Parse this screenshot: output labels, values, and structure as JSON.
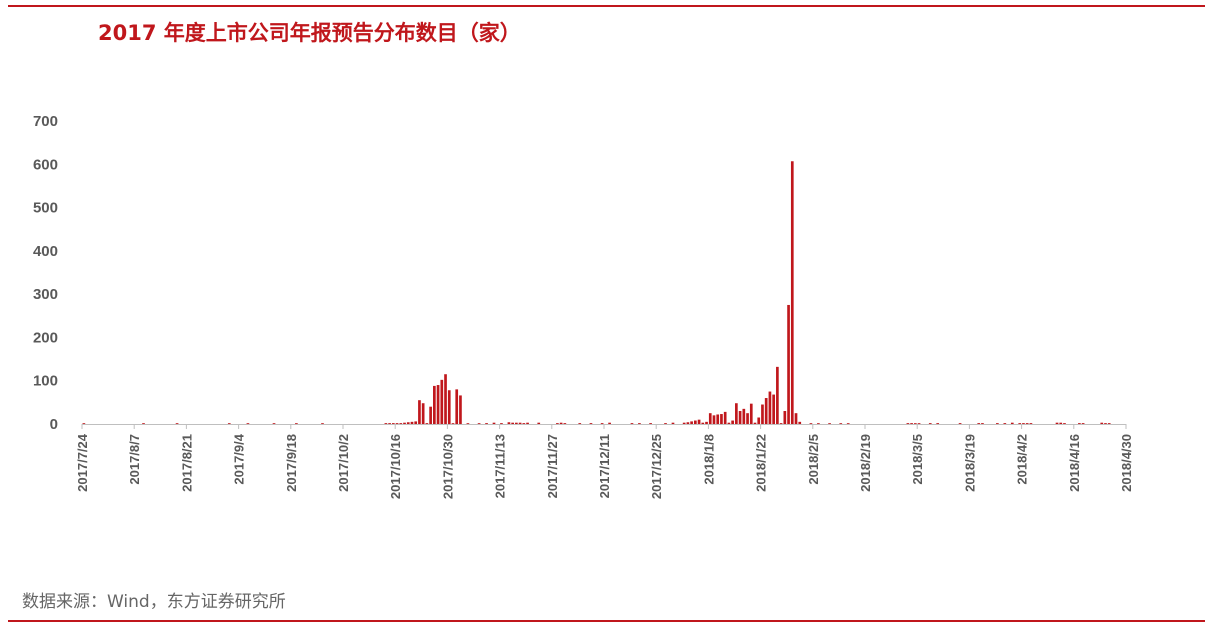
{
  "header": {
    "title": "2017 年度上市公司年报预告分布数目（家）"
  },
  "footer": {
    "source": "数据来源：Wind，东方证券研究所"
  },
  "colors": {
    "bar": "#c0171c",
    "rule": "#c0171c",
    "axis": "#bfbfbf",
    "text": "#595959"
  },
  "chart_data": {
    "type": "bar",
    "title": "2017 年度上市公司年报预告分布数目（家）",
    "xlabel": "",
    "ylabel": "",
    "ylim": [
      0,
      700
    ],
    "yticks": [
      0,
      100,
      200,
      300,
      400,
      500,
      600,
      700
    ],
    "x_start": "2017/7/24",
    "x_end": "2018/4/30",
    "xtick_labels": [
      "2017/7/24",
      "2017/8/7",
      "2017/8/21",
      "2017/9/4",
      "2017/9/18",
      "2017/10/2",
      "2017/10/16",
      "2017/10/30",
      "2017/11/13",
      "2017/11/27",
      "2017/12/11",
      "2017/12/25",
      "2018/1/8",
      "2018/1/22",
      "2018/2/5",
      "2018/2/19",
      "2018/3/5",
      "2018/3/19",
      "2018/4/2",
      "2018/4/16",
      "2018/4/30"
    ],
    "grid": false,
    "legend": "none",
    "series": [
      {
        "values": [
          [
            "2017/7/24",
            1
          ],
          [
            "2017/8/9",
            1
          ],
          [
            "2017/8/18",
            1
          ],
          [
            "2017/9/1",
            1
          ],
          [
            "2017/9/6",
            1
          ],
          [
            "2017/9/13",
            1
          ],
          [
            "2017/9/19",
            1
          ],
          [
            "2017/9/26",
            1
          ],
          [
            "2017/10/13",
            2
          ],
          [
            "2017/10/14",
            2
          ],
          [
            "2017/10/15",
            2
          ],
          [
            "2017/10/16",
            2
          ],
          [
            "2017/10/17",
            2
          ],
          [
            "2017/10/18",
            3
          ],
          [
            "2017/10/19",
            4
          ],
          [
            "2017/10/20",
            5
          ],
          [
            "2017/10/21",
            6
          ],
          [
            "2017/10/22",
            55
          ],
          [
            "2017/10/23",
            48
          ],
          [
            "2017/10/24",
            2
          ],
          [
            "2017/10/25",
            40
          ],
          [
            "2017/10/26",
            88
          ],
          [
            "2017/10/27",
            90
          ],
          [
            "2017/10/28",
            102
          ],
          [
            "2017/10/29",
            115
          ],
          [
            "2017/10/30",
            78
          ],
          [
            "2017/10/31",
            1
          ],
          [
            "2017/11/1",
            80
          ],
          [
            "2017/11/2",
            66
          ],
          [
            "2017/11/4",
            1
          ],
          [
            "2017/11/7",
            1
          ],
          [
            "2017/11/9",
            2
          ],
          [
            "2017/11/11",
            3
          ],
          [
            "2017/11/13",
            2
          ],
          [
            "2017/11/15",
            4
          ],
          [
            "2017/11/16",
            3
          ],
          [
            "2017/11/17",
            3
          ],
          [
            "2017/11/18",
            3
          ],
          [
            "2017/11/19",
            2
          ],
          [
            "2017/11/20",
            3
          ],
          [
            "2017/11/23",
            3
          ],
          [
            "2017/11/28",
            2
          ],
          [
            "2017/11/29",
            3
          ],
          [
            "2017/11/30",
            2
          ],
          [
            "2017/12/4",
            2
          ],
          [
            "2017/12/7",
            2
          ],
          [
            "2017/12/10",
            2
          ],
          [
            "2017/12/12",
            3
          ],
          [
            "2017/12/18",
            2
          ],
          [
            "2017/12/20",
            2
          ],
          [
            "2017/12/23",
            2
          ],
          [
            "2017/12/27",
            2
          ],
          [
            "2017/12/29",
            3
          ],
          [
            "2018/1/1",
            3
          ],
          [
            "2018/1/2",
            4
          ],
          [
            "2018/1/3",
            6
          ],
          [
            "2018/1/4",
            8
          ],
          [
            "2018/1/5",
            10
          ],
          [
            "2018/1/6",
            3
          ],
          [
            "2018/1/7",
            5
          ],
          [
            "2018/1/8",
            25
          ],
          [
            "2018/1/9",
            20
          ],
          [
            "2018/1/10",
            22
          ],
          [
            "2018/1/11",
            23
          ],
          [
            "2018/1/12",
            28
          ],
          [
            "2018/1/13",
            3
          ],
          [
            "2018/1/14",
            8
          ],
          [
            "2018/1/15",
            48
          ],
          [
            "2018/1/16",
            30
          ],
          [
            "2018/1/17",
            35
          ],
          [
            "2018/1/18",
            25
          ],
          [
            "2018/1/19",
            47
          ],
          [
            "2018/1/20",
            3
          ],
          [
            "2018/1/21",
            15
          ],
          [
            "2018/1/22",
            45
          ],
          [
            "2018/1/23",
            60
          ],
          [
            "2018/1/24",
            75
          ],
          [
            "2018/1/25",
            68
          ],
          [
            "2018/1/26",
            132
          ],
          [
            "2018/1/27",
            2
          ],
          [
            "2018/1/28",
            30
          ],
          [
            "2018/1/29",
            275
          ],
          [
            "2018/1/30",
            607
          ],
          [
            "2018/1/31",
            25
          ],
          [
            "2018/2/1",
            5
          ],
          [
            "2018/2/4",
            1
          ],
          [
            "2018/2/6",
            1
          ],
          [
            "2018/2/9",
            1
          ],
          [
            "2018/2/12",
            1
          ],
          [
            "2018/2/14",
            1
          ],
          [
            "2018/3/2",
            2
          ],
          [
            "2018/3/3",
            2
          ],
          [
            "2018/3/4",
            1
          ],
          [
            "2018/3/5",
            1
          ],
          [
            "2018/3/8",
            2
          ],
          [
            "2018/3/10",
            2
          ],
          [
            "2018/3/16",
            2
          ],
          [
            "2018/3/21",
            2
          ],
          [
            "2018/3/22",
            2
          ],
          [
            "2018/3/26",
            2
          ],
          [
            "2018/3/28",
            2
          ],
          [
            "2018/3/30",
            3
          ],
          [
            "2018/4/1",
            2
          ],
          [
            "2018/4/2",
            2
          ],
          [
            "2018/4/3",
            2
          ],
          [
            "2018/4/4",
            2
          ],
          [
            "2018/4/11",
            3
          ],
          [
            "2018/4/12",
            3
          ],
          [
            "2018/4/13",
            2
          ],
          [
            "2018/4/17",
            2
          ],
          [
            "2018/4/18",
            2
          ],
          [
            "2018/4/23",
            3
          ],
          [
            "2018/4/24",
            2
          ],
          [
            "2018/4/25",
            2
          ]
        ]
      }
    ]
  }
}
